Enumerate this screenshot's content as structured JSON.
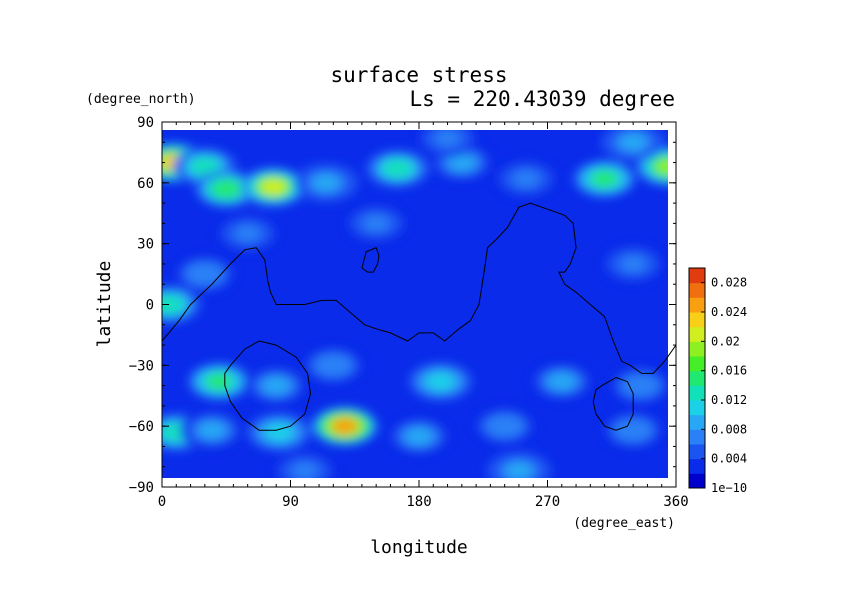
{
  "chart_data": {
    "type": "heatmap",
    "title": "surface stress",
    "subtitle": "Ls = 220.43039 degree",
    "xlabel": "longitude",
    "ylabel": "latitude",
    "x_unit": "(degree_east)",
    "y_unit": "(degree_north)",
    "xlim": [
      0,
      360
    ],
    "ylim": [
      -90,
      90
    ],
    "x_ticks": [
      "0",
      "90",
      "180",
      "270",
      "360"
    ],
    "y_ticks": [
      "90",
      "60",
      "30",
      "0",
      "−30",
      "−60",
      "−90"
    ],
    "colorbar": {
      "min": 1e-10,
      "max": 0.03,
      "tick_labels": [
        "1e−10",
        "0.004",
        "0.008",
        "0.012",
        "0.016",
        "0.02",
        "0.024",
        "0.028"
      ],
      "tick_values": [
        0,
        0.004,
        0.008,
        0.012,
        0.016,
        0.02,
        0.024,
        0.028
      ],
      "colors": [
        "#0000cd",
        "#0a2bea",
        "#1a55f2",
        "#2a80f6",
        "#28a8f4",
        "#1cd0e8",
        "#12e0b8",
        "#20e870",
        "#46ee28",
        "#8ef020",
        "#d0ee20",
        "#f8d018",
        "#f8a010",
        "#f07010",
        "#e03c10"
      ]
    },
    "background_level": 0.002,
    "hotspots": [
      {
        "lon": 8,
        "lat": 70,
        "value": 0.022
      },
      {
        "lon": 30,
        "lat": 68,
        "value": 0.012
      },
      {
        "lon": 45,
        "lat": 57,
        "value": 0.015
      },
      {
        "lon": 78,
        "lat": 58,
        "value": 0.02
      },
      {
        "lon": 115,
        "lat": 60,
        "value": 0.009
      },
      {
        "lon": 165,
        "lat": 67,
        "value": 0.012
      },
      {
        "lon": 210,
        "lat": 70,
        "value": 0.008
      },
      {
        "lon": 255,
        "lat": 62,
        "value": 0.006
      },
      {
        "lon": 310,
        "lat": 62,
        "value": 0.014
      },
      {
        "lon": 355,
        "lat": 68,
        "value": 0.018
      },
      {
        "lon": 330,
        "lat": 80,
        "value": 0.009
      },
      {
        "lon": 200,
        "lat": 82,
        "value": 0.006
      },
      {
        "lon": 5,
        "lat": 0,
        "value": 0.012
      },
      {
        "lon": 30,
        "lat": 15,
        "value": 0.007
      },
      {
        "lon": 60,
        "lat": 35,
        "value": 0.006
      },
      {
        "lon": 150,
        "lat": 40,
        "value": 0.006
      },
      {
        "lon": 330,
        "lat": 20,
        "value": 0.006
      },
      {
        "lon": 40,
        "lat": -38,
        "value": 0.014
      },
      {
        "lon": 80,
        "lat": -40,
        "value": 0.008
      },
      {
        "lon": 120,
        "lat": -30,
        "value": 0.007
      },
      {
        "lon": 195,
        "lat": -38,
        "value": 0.011
      },
      {
        "lon": 280,
        "lat": -38,
        "value": 0.008
      },
      {
        "lon": 335,
        "lat": -40,
        "value": 0.007
      },
      {
        "lon": 10,
        "lat": -63,
        "value": 0.012
      },
      {
        "lon": 35,
        "lat": -62,
        "value": 0.008
      },
      {
        "lon": 82,
        "lat": -63,
        "value": 0.011
      },
      {
        "lon": 128,
        "lat": -60,
        "value": 0.024
      },
      {
        "lon": 180,
        "lat": -65,
        "value": 0.008
      },
      {
        "lon": 240,
        "lat": -60,
        "value": 0.007
      },
      {
        "lon": 330,
        "lat": -62,
        "value": 0.007
      },
      {
        "lon": 250,
        "lat": -82,
        "value": 0.009
      },
      {
        "lon": 100,
        "lat": -82,
        "value": 0.006
      }
    ],
    "contours": [
      {
        "lon": [
          0,
          12,
          20,
          35,
          48,
          58,
          66,
          72,
          74,
          76,
          80,
          88,
          100,
          112,
          122,
          132,
          142,
          150,
          160,
          172,
          180,
          190,
          198,
          208,
          216,
          222,
          226,
          228,
          234,
          242,
          250,
          258,
          266,
          274,
          282,
          288,
          290,
          286,
          282,
          278,
          282,
          290,
          300,
          310,
          316,
          322,
          328,
          336,
          344,
          352,
          360
        ],
        "lat": [
          -18,
          -8,
          0,
          10,
          20,
          27,
          28,
          22,
          12,
          6,
          0,
          0,
          0,
          2,
          2,
          -4,
          -10,
          -12,
          -14,
          -18,
          -14,
          -14,
          -18,
          -12,
          -8,
          0,
          18,
          28,
          32,
          38,
          48,
          50,
          48,
          46,
          44,
          40,
          28,
          20,
          16,
          16,
          10,
          6,
          0,
          -6,
          -18,
          -28,
          -30,
          -34,
          -34,
          -28,
          -20
        ]
      },
      {
        "lon": [
          140,
          143,
          150,
          152,
          151,
          148,
          144,
          140,
          140
        ],
        "lat": [
          18,
          26,
          28,
          24,
          20,
          16,
          16,
          18,
          18
        ]
      },
      {
        "lon": [
          48,
          58,
          68,
          80,
          94,
          102,
          104,
          100,
          90,
          80,
          68,
          56,
          48,
          44,
          44,
          48
        ],
        "lat": [
          -30,
          -22,
          -18,
          -20,
          -26,
          -34,
          -44,
          -54,
          -60,
          -62,
          -62,
          -56,
          -48,
          -40,
          -34,
          -30
        ]
      },
      {
        "lon": [
          308,
          318,
          326,
          330,
          330,
          326,
          318,
          310,
          304,
          302,
          304,
          308
        ],
        "lat": [
          -40,
          -36,
          -38,
          -44,
          -54,
          -60,
          -62,
          -60,
          -54,
          -48,
          -42,
          -40
        ]
      }
    ]
  }
}
